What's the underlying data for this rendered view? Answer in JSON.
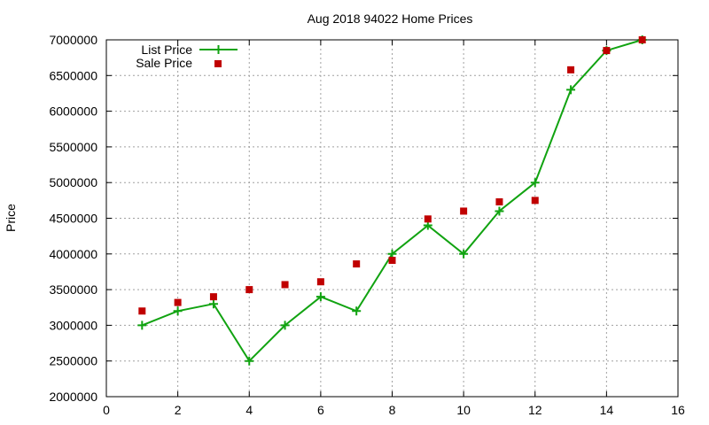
{
  "chart_data": {
    "type": "line",
    "title": "Aug 2018 94022 Home Prices",
    "xlabel": "",
    "ylabel": "Price",
    "xlim": [
      0,
      16
    ],
    "ylim": [
      2000000,
      7000000
    ],
    "x_ticks": [
      0,
      2,
      4,
      6,
      8,
      10,
      12,
      14,
      16
    ],
    "y_ticks": [
      2000000,
      2500000,
      3000000,
      3500000,
      4000000,
      4500000,
      5000000,
      5500000,
      6000000,
      6500000,
      7000000
    ],
    "x_tick_labels": [
      "0",
      "2",
      "4",
      "6",
      "8",
      "10",
      "12",
      "14",
      "16"
    ],
    "y_tick_labels": [
      "2000000",
      "2500000",
      "3000000",
      "3500000",
      "4000000",
      "4500000",
      "5000000",
      "5500000",
      "6000000",
      "6500000",
      "7000000"
    ],
    "grid": true,
    "legend_position": "top-left",
    "series": [
      {
        "name": "List Price",
        "style": "line-with-plus-markers",
        "color": "#11a311",
        "x": [
          1,
          2,
          3,
          4,
          5,
          6,
          7,
          8,
          9,
          10,
          11,
          12,
          13,
          14,
          15
        ],
        "y": [
          3000000,
          3200000,
          3300000,
          2500000,
          3000000,
          3400000,
          3200000,
          4000000,
          4400000,
          4000000,
          4600000,
          5000000,
          6300000,
          6850000,
          7000000
        ]
      },
      {
        "name": "Sale Price",
        "style": "square-markers",
        "color": "#c00000",
        "x": [
          1,
          2,
          3,
          4,
          5,
          6,
          7,
          8,
          9,
          10,
          11,
          12,
          13,
          14,
          15
        ],
        "y": [
          3200000,
          3320000,
          3400000,
          3500000,
          3570000,
          3610000,
          3860000,
          3910000,
          4490000,
          4600000,
          4730000,
          4750000,
          6580000,
          6850000,
          7000000
        ]
      }
    ]
  }
}
